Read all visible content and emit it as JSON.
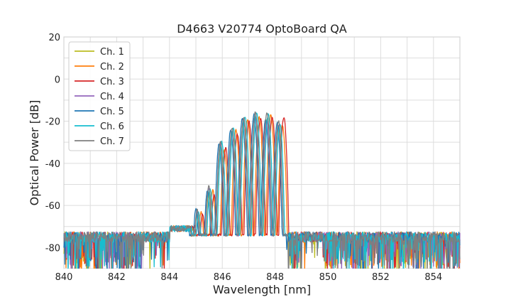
{
  "chart_data": {
    "type": "line",
    "title": "D4663 V20774 OptoBoard QA",
    "xlabel": "Wavelength [nm]",
    "ylabel": "Optical Power [dB]",
    "xlim": [
      840,
      855
    ],
    "ylim": [
      -90,
      20
    ],
    "xticks": [
      840,
      842,
      844,
      846,
      848,
      850,
      852,
      854
    ],
    "yticks": [
      -80,
      -60,
      -40,
      -20,
      0,
      20
    ],
    "grid": true,
    "legend_position": "top-left",
    "noise_floor_db": -75,
    "series": [
      {
        "name": "Ch. 1",
        "color": "#bcbd22",
        "comb_start_nm": 845.05,
        "peaks_db": [
          -64,
          -54,
          -33,
          -25,
          -20,
          -18,
          -19,
          -23
        ]
      },
      {
        "name": "Ch. 2",
        "color": "#ff7f0e",
        "comb_start_nm": 845.2,
        "peaks_db": [
          -63,
          -53,
          -34,
          -24,
          -19,
          -18,
          -17,
          -22
        ]
      },
      {
        "name": "Ch. 3",
        "color": "#d62728",
        "comb_start_nm": 845.25,
        "peaks_db": [
          -64,
          -55,
          -33,
          -26,
          -20,
          -19,
          -18,
          -18
        ]
      },
      {
        "name": "Ch. 4",
        "color": "#9467bd",
        "comb_start_nm": 845.05,
        "peaks_db": [
          -63,
          -52,
          -31,
          -25,
          -19,
          -18,
          -20,
          -22
        ]
      },
      {
        "name": "Ch. 5",
        "color": "#1f77b4",
        "comb_start_nm": 845.0,
        "peaks_db": [
          -62,
          -53,
          -31,
          -24,
          -19,
          -17,
          -19,
          -21
        ]
      },
      {
        "name": "Ch. 6",
        "color": "#17becf",
        "comb_start_nm": 845.1,
        "peaks_db": [
          -63,
          -52,
          -30,
          -23,
          -18,
          -16,
          -17,
          -21
        ]
      },
      {
        "name": "Ch. 7",
        "color": "#7f7f7f",
        "comb_start_nm": 845.05,
        "peaks_db": [
          -62,
          -51,
          -30,
          -23,
          -18,
          -16,
          -16,
          -20
        ]
      }
    ]
  }
}
